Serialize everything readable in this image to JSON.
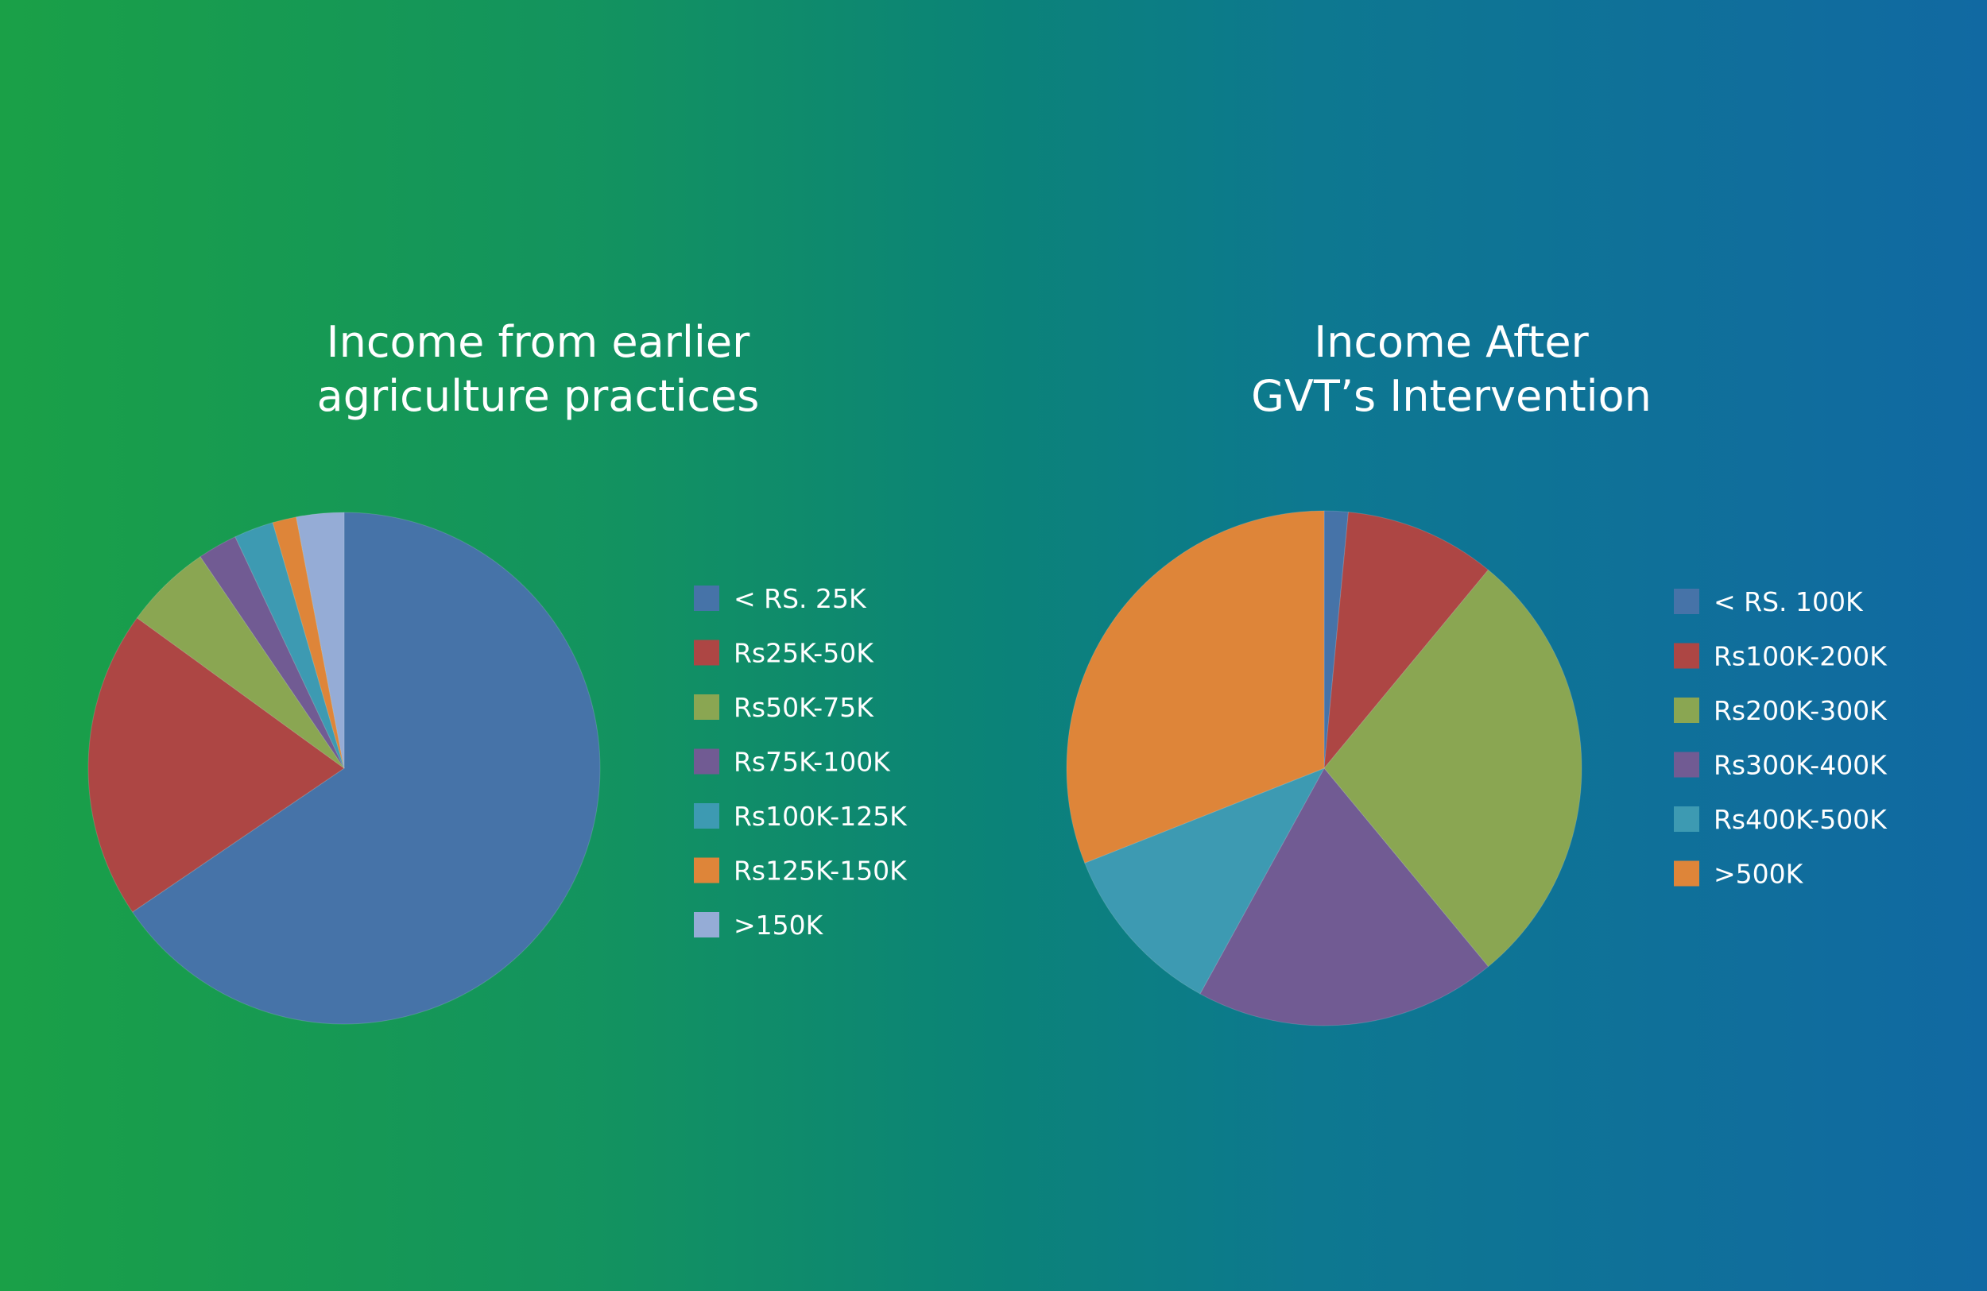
{
  "chart_data": [
    {
      "type": "pie",
      "title_lines": [
        "Income from earlier",
        "agriculture practices"
      ],
      "slices": [
        {
          "label": "< RS. 25K",
          "value": 65.5,
          "color": "#4673a8"
        },
        {
          "label": "Rs25K-50K",
          "value": 19.5,
          "color": "#ad4644"
        },
        {
          "label": "Rs50K-75K",
          "value": 5.5,
          "color": "#8aa652"
        },
        {
          "label": "Rs75K-100K",
          "value": 2.5,
          "color": "#715b93"
        },
        {
          "label": "Rs100K-125K",
          "value": 2.5,
          "color": "#3d9ab2"
        },
        {
          "label": "Rs125K-150K",
          "value": 1.5,
          "color": "#de8539"
        },
        {
          "label": ">150K",
          "value": 3.0,
          "color": "#95acd6"
        }
      ],
      "legend_position": "right"
    },
    {
      "type": "pie",
      "title_lines": [
        "Income After",
        "GVT’s Intervention"
      ],
      "slices": [
        {
          "label": "< RS. 100K",
          "value": 1.5,
          "color": "#4673a8"
        },
        {
          "label": "Rs100K-200K",
          "value": 9.5,
          "color": "#ad4644"
        },
        {
          "label": "Rs200K-300K",
          "value": 28.0,
          "color": "#8aa652"
        },
        {
          "label": "Rs300K-400K",
          "value": 19.0,
          "color": "#715b93"
        },
        {
          "label": "Rs400K-500K",
          "value": 11.0,
          "color": "#3d9ab2"
        },
        {
          "label": ">500K",
          "value": 31.0,
          "color": "#de8539"
        }
      ],
      "legend_position": "right"
    }
  ]
}
